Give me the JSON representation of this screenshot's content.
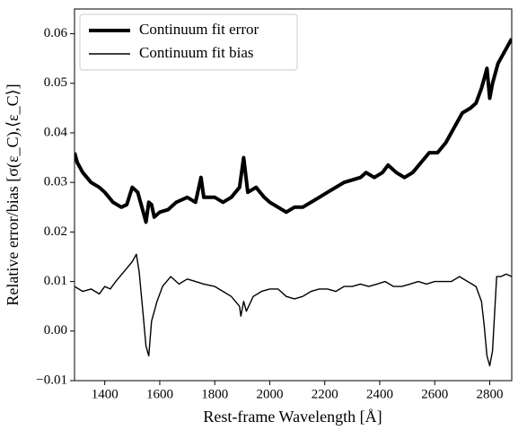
{
  "chart_data": {
    "type": "line",
    "xlabel": "Rest-frame Wavelength [Å]",
    "ylabel": "Relative error/bias [σ(ε_C),⟨ε_C⟩]",
    "xlim": [
      1290,
      2880
    ],
    "ylim": [
      -0.01,
      0.065
    ],
    "xticks": [
      1400,
      1600,
      1800,
      2000,
      2200,
      2400,
      2600,
      2800
    ],
    "yticks": [
      {
        "value": -0.01,
        "label": "−0.01"
      },
      {
        "value": 0,
        "label": "0.00"
      },
      0.01,
      0.02,
      0.03,
      0.04,
      0.05,
      0.06
    ],
    "legend": "upper left",
    "series": [
      {
        "name": "Continuum fit error",
        "color": "#000000",
        "linewidth": 4,
        "x": [
          1290,
          1300,
          1320,
          1350,
          1380,
          1400,
          1430,
          1460,
          1480,
          1500,
          1520,
          1540,
          1550,
          1560,
          1570,
          1580,
          1600,
          1630,
          1660,
          1700,
          1730,
          1750,
          1760,
          1800,
          1830,
          1860,
          1890,
          1905,
          1920,
          1950,
          1980,
          2000,
          2030,
          2060,
          2090,
          2120,
          2150,
          2180,
          2210,
          2240,
          2270,
          2300,
          2330,
          2350,
          2380,
          2410,
          2430,
          2460,
          2490,
          2520,
          2550,
          2580,
          2610,
          2640,
          2670,
          2700,
          2730,
          2750,
          2770,
          2780,
          2790,
          2800,
          2810,
          2830,
          2850,
          2880
        ],
        "values": [
          0.036,
          0.034,
          0.032,
          0.03,
          0.029,
          0.028,
          0.026,
          0.025,
          0.0255,
          0.029,
          0.028,
          0.024,
          0.022,
          0.026,
          0.0255,
          0.023,
          0.024,
          0.0245,
          0.026,
          0.027,
          0.026,
          0.031,
          0.027,
          0.027,
          0.026,
          0.027,
          0.029,
          0.035,
          0.028,
          0.029,
          0.027,
          0.026,
          0.025,
          0.024,
          0.025,
          0.025,
          0.026,
          0.027,
          0.028,
          0.029,
          0.03,
          0.0305,
          0.031,
          0.032,
          0.031,
          0.032,
          0.0335,
          0.032,
          0.031,
          0.032,
          0.034,
          0.036,
          0.036,
          0.038,
          0.041,
          0.044,
          0.045,
          0.046,
          0.049,
          0.051,
          0.053,
          0.047,
          0.05,
          0.054,
          0.056,
          0.059
        ]
      },
      {
        "name": "Continuum fit bias",
        "color": "#000000",
        "linewidth": 1.4,
        "x": [
          1290,
          1320,
          1350,
          1380,
          1400,
          1420,
          1440,
          1470,
          1500,
          1515,
          1525,
          1540,
          1550,
          1560,
          1570,
          1590,
          1610,
          1640,
          1670,
          1700,
          1730,
          1760,
          1800,
          1830,
          1860,
          1890,
          1895,
          1905,
          1915,
          1940,
          1970,
          2000,
          2030,
          2060,
          2090,
          2120,
          2150,
          2180,
          2210,
          2240,
          2270,
          2300,
          2330,
          2360,
          2390,
          2420,
          2450,
          2480,
          2510,
          2540,
          2570,
          2600,
          2630,
          2660,
          2690,
          2720,
          2750,
          2770,
          2780,
          2790,
          2800,
          2810,
          2825,
          2840,
          2860,
          2880
        ],
        "values": [
          0.009,
          0.008,
          0.0085,
          0.0075,
          0.009,
          0.0085,
          0.01,
          0.012,
          0.014,
          0.0155,
          0.012,
          0.003,
          -0.003,
          -0.005,
          0.002,
          0.006,
          0.009,
          0.011,
          0.0095,
          0.0105,
          0.01,
          0.0095,
          0.009,
          0.008,
          0.007,
          0.005,
          0.003,
          0.006,
          0.004,
          0.007,
          0.008,
          0.0085,
          0.0085,
          0.007,
          0.0065,
          0.007,
          0.008,
          0.0085,
          0.0085,
          0.008,
          0.009,
          0.009,
          0.0095,
          0.009,
          0.0095,
          0.01,
          0.009,
          0.009,
          0.0095,
          0.01,
          0.0095,
          0.01,
          0.01,
          0.01,
          0.011,
          0.01,
          0.009,
          0.006,
          0.001,
          -0.005,
          -0.007,
          -0.004,
          0.011,
          0.011,
          0.0115,
          0.011
        ]
      }
    ]
  }
}
